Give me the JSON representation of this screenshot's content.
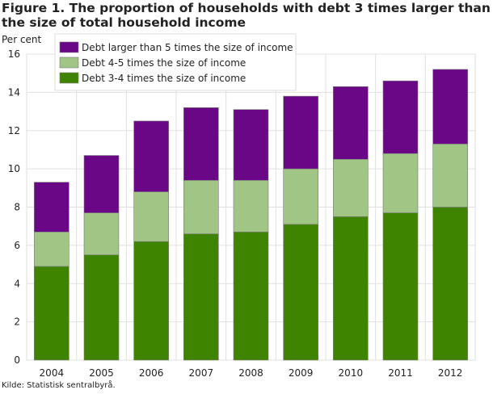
{
  "chart_data": {
    "type": "bar",
    "stacked": true,
    "title": "Figure 1. The proportion of households with debt 3 times larger than the size of total household income",
    "ylabel": "Per cent",
    "xlabel": "",
    "ylim": [
      0,
      16
    ],
    "yticks": [
      0,
      2,
      4,
      6,
      8,
      10,
      12,
      14,
      16
    ],
    "grid": true,
    "legend_position": "top-left",
    "categories": [
      "2004",
      "2005",
      "2006",
      "2007",
      "2008",
      "2009",
      "2010",
      "2011",
      "2012"
    ],
    "series": [
      {
        "name": "Debt 3-4 times the size of income",
        "color": "#3f8400",
        "values": [
          4.9,
          5.5,
          6.2,
          6.6,
          6.7,
          7.1,
          7.5,
          7.7,
          8.0
        ]
      },
      {
        "name": "Debt 4-5 times the size of income",
        "color": "#a0c585",
        "values": [
          1.8,
          2.2,
          2.6,
          2.8,
          2.7,
          2.9,
          3.0,
          3.1,
          3.3
        ]
      },
      {
        "name": "Debt larger than 5 times the size of income",
        "color": "#6a0786",
        "values": [
          2.6,
          3.0,
          3.7,
          3.8,
          3.7,
          3.8,
          3.8,
          3.8,
          3.9
        ]
      }
    ],
    "legend_order": [
      2,
      1,
      0
    ],
    "source": "Kilde: Statistisk sentralbyrå."
  }
}
